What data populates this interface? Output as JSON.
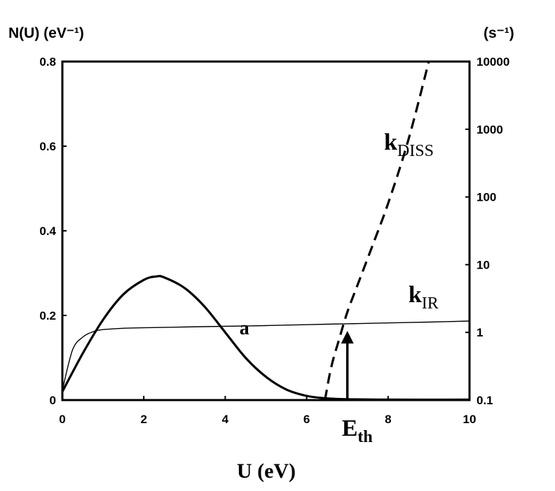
{
  "chart_data": {
    "type": "line",
    "xlabel": "U (eV)",
    "ylabel_left": "N(U)  (eV⁻¹)",
    "ylabel_right": "(s⁻¹)",
    "xlim": [
      0,
      10
    ],
    "ylim_left": [
      0,
      0.8
    ],
    "ylim_right": [
      0.1,
      10000
    ],
    "right_axis_scale": "log",
    "x_ticks": [
      "0",
      "2",
      "4",
      "6",
      "8",
      "10"
    ],
    "y_left_ticks": [
      "0",
      "0.2",
      "0.4",
      "0.6",
      "0.8"
    ],
    "y_right_ticks": [
      "0.1",
      "1",
      "10",
      "100",
      "1000",
      "10000"
    ],
    "grid": false,
    "series": [
      {
        "name": "a",
        "axis": "left",
        "style": "thick-solid",
        "x": [
          0,
          0.5,
          1,
          1.5,
          2,
          2.3,
          2.5,
          3,
          3.5,
          4,
          4.5,
          5,
          5.5,
          6,
          6.5,
          7,
          8,
          10
        ],
        "y": [
          0.02,
          0.11,
          0.19,
          0.25,
          0.284,
          0.292,
          0.29,
          0.265,
          0.22,
          0.16,
          0.1,
          0.055,
          0.025,
          0.01,
          0.004,
          0.002,
          0.001,
          0.001
        ]
      },
      {
        "name": "k_IR",
        "axis": "right",
        "style": "thin-solid",
        "x": [
          0,
          0.25,
          0.5,
          0.75,
          1,
          1.5,
          2,
          3,
          4,
          5,
          6,
          7,
          8,
          9,
          10
        ],
        "y": [
          0.14,
          0.55,
          0.85,
          1.02,
          1.1,
          1.15,
          1.17,
          1.2,
          1.23,
          1.26,
          1.3,
          1.34,
          1.38,
          1.42,
          1.47
        ]
      },
      {
        "name": "k_DISS",
        "axis": "right",
        "style": "dashed",
        "x": [
          6.45,
          6.6,
          6.8,
          7.0,
          7.3,
          7.6,
          8.0,
          8.5,
          9.0
        ],
        "y": [
          0.1,
          0.3,
          0.8,
          2,
          6,
          18,
          80,
          700,
          10000
        ]
      }
    ],
    "annotations": [
      {
        "text": "k",
        "sub": "DISS",
        "x": 7.9,
        "y_right": 500
      },
      {
        "text": "k",
        "sub": "IR",
        "x": 8.5,
        "y_right": 2.8
      },
      {
        "text": "a",
        "x": 4.35,
        "y": 0.155
      },
      {
        "text": "E",
        "sub": "th",
        "x": 7.0,
        "arrow_to_y_right": 1.05
      }
    ]
  }
}
